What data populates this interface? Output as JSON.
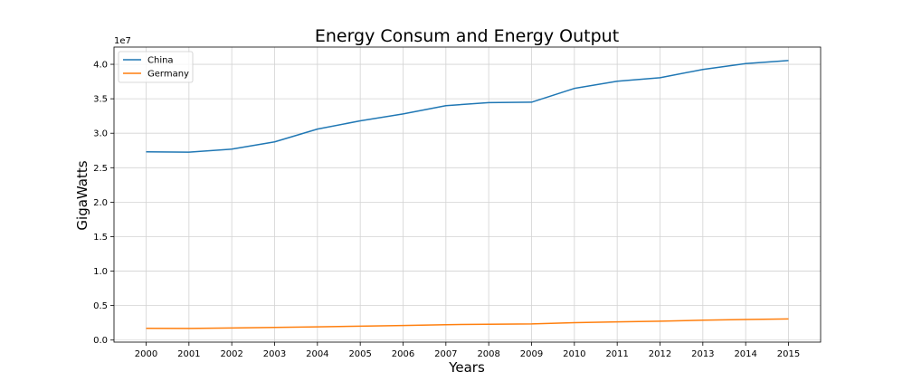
{
  "chart_data": {
    "type": "line",
    "title": "Energy Consum and Energy Output",
    "xlabel": "Years",
    "ylabel": "GigaWatts",
    "y_offset_label": "1e7",
    "x": [
      2000,
      2001,
      2002,
      2003,
      2004,
      2005,
      2006,
      2007,
      2008,
      2009,
      2010,
      2011,
      2012,
      2013,
      2014,
      2015
    ],
    "x_ticks": [
      "2000",
      "2001",
      "2002",
      "2003",
      "2004",
      "2005",
      "2006",
      "2007",
      "2008",
      "2009",
      "2010",
      "2011",
      "2012",
      "2013",
      "2014",
      "2015"
    ],
    "y_ticks": [
      0,
      5000000,
      10000000,
      15000000,
      20000000,
      25000000,
      30000000,
      35000000,
      40000000
    ],
    "y_tick_labels": [
      "0.0",
      "0.5",
      "1.0",
      "1.5",
      "2.0",
      "2.5",
      "3.0",
      "3.5",
      "4.0"
    ],
    "ylim": [
      -300000,
      42500000
    ],
    "xlim": [
      1999.25,
      2015.75
    ],
    "grid": true,
    "legend_position": "top-left",
    "series": [
      {
        "name": "China",
        "color": "#1f77b4",
        "values": [
          27300000,
          27250000,
          27700000,
          28750000,
          30600000,
          31800000,
          32800000,
          34000000,
          34450000,
          34500000,
          36500000,
          37550000,
          38050000,
          39250000,
          40100000,
          40550000
        ]
      },
      {
        "name": "Germany",
        "color": "#ff7f0e",
        "values": [
          1700000,
          1680000,
          1750000,
          1830000,
          1920000,
          2010000,
          2120000,
          2230000,
          2300000,
          2340000,
          2520000,
          2640000,
          2730000,
          2880000,
          2980000,
          3060000
        ]
      }
    ]
  }
}
